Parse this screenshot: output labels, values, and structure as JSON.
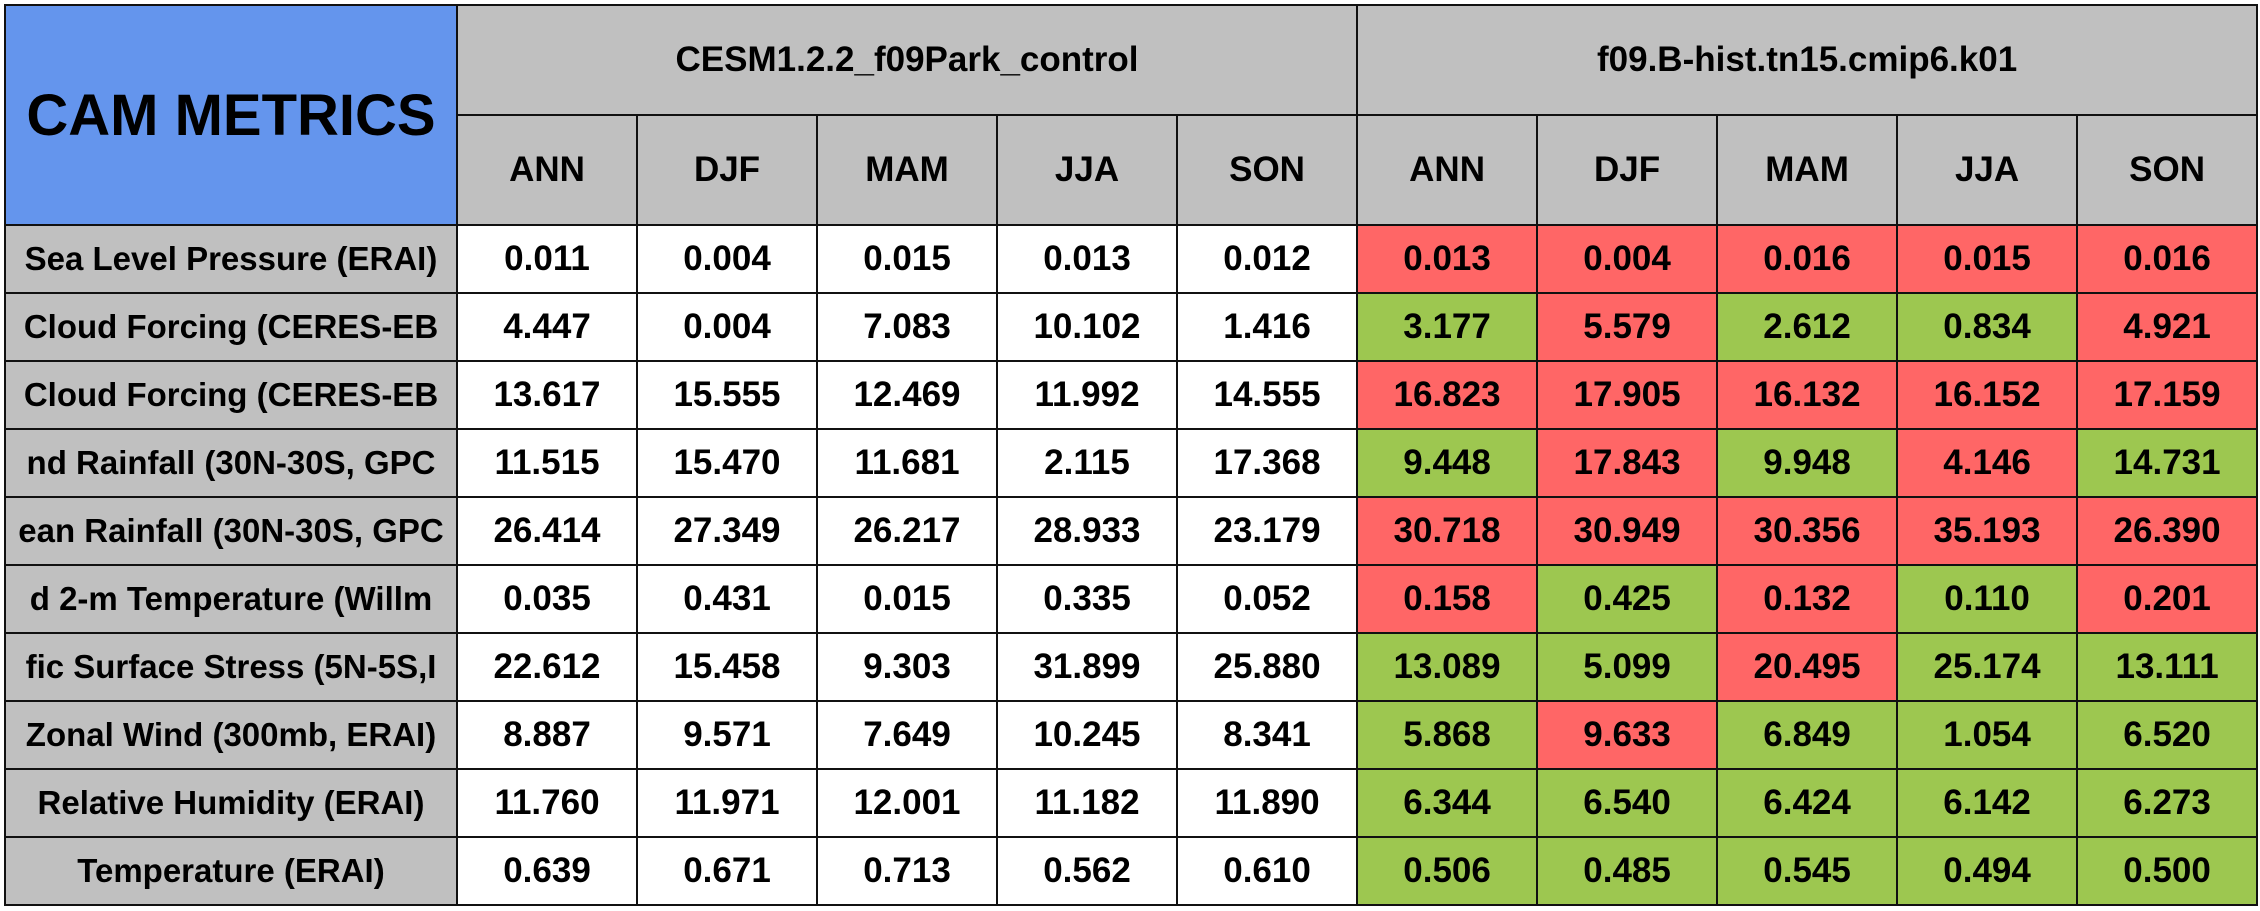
{
  "chart_data": {
    "type": "table",
    "title": "CAM METRICS",
    "cases": [
      "CESM1.2.2_f09Park_control",
      "f09.B-hist.tn15.cmip6.k01"
    ],
    "seasons": [
      "ANN",
      "DJF",
      "MAM",
      "JJA",
      "SON"
    ],
    "rows": [
      {
        "label": "Sea Level Pressure (ERAI)",
        "case1": [
          "0.011",
          "0.004",
          "0.015",
          "0.013",
          "0.012"
        ],
        "case2": [
          "0.013",
          "0.004",
          "0.016",
          "0.015",
          "0.016"
        ],
        "case2_status": [
          "worse",
          "worse",
          "worse",
          "worse",
          "worse"
        ]
      },
      {
        "label": "Cloud Forcing (CERES-EB",
        "case1": [
          "4.447",
          "0.004",
          "7.083",
          "10.102",
          "1.416"
        ],
        "case2": [
          "3.177",
          "5.579",
          "2.612",
          "0.834",
          "4.921"
        ],
        "case2_status": [
          "better",
          "worse",
          "better",
          "better",
          "worse"
        ]
      },
      {
        "label": "Cloud Forcing (CERES-EB",
        "case1": [
          "13.617",
          "15.555",
          "12.469",
          "11.992",
          "14.555"
        ],
        "case2": [
          "16.823",
          "17.905",
          "16.132",
          "16.152",
          "17.159"
        ],
        "case2_status": [
          "worse",
          "worse",
          "worse",
          "worse",
          "worse"
        ]
      },
      {
        "label": "nd Rainfall (30N-30S, GPC",
        "case1": [
          "11.515",
          "15.470",
          "11.681",
          "2.115",
          "17.368"
        ],
        "case2": [
          "9.448",
          "17.843",
          "9.948",
          "4.146",
          "14.731"
        ],
        "case2_status": [
          "better",
          "worse",
          "better",
          "worse",
          "better"
        ]
      },
      {
        "label": "ean Rainfall (30N-30S, GPC",
        "case1": [
          "26.414",
          "27.349",
          "26.217",
          "28.933",
          "23.179"
        ],
        "case2": [
          "30.718",
          "30.949",
          "30.356",
          "35.193",
          "26.390"
        ],
        "case2_status": [
          "worse",
          "worse",
          "worse",
          "worse",
          "worse"
        ]
      },
      {
        "label": "d 2-m Temperature (Willm",
        "case1": [
          "0.035",
          "0.431",
          "0.015",
          "0.335",
          "0.052"
        ],
        "case2": [
          "0.158",
          "0.425",
          "0.132",
          "0.110",
          "0.201"
        ],
        "case2_status": [
          "worse",
          "better",
          "worse",
          "better",
          "worse"
        ]
      },
      {
        "label": "fic Surface Stress (5N-5S,I",
        "case1": [
          "22.612",
          "15.458",
          "9.303",
          "31.899",
          "25.880"
        ],
        "case2": [
          "13.089",
          "5.099",
          "20.495",
          "25.174",
          "13.111"
        ],
        "case2_status": [
          "better",
          "better",
          "worse",
          "better",
          "better"
        ]
      },
      {
        "label": "Zonal Wind (300mb, ERAI)",
        "case1": [
          "8.887",
          "9.571",
          "7.649",
          "10.245",
          "8.341"
        ],
        "case2": [
          "5.868",
          "9.633",
          "6.849",
          "1.054",
          "6.520"
        ],
        "case2_status": [
          "better",
          "worse",
          "better",
          "better",
          "better"
        ]
      },
      {
        "label": "Relative Humidity (ERAI)",
        "case1": [
          "11.760",
          "11.971",
          "12.001",
          "11.182",
          "11.890"
        ],
        "case2": [
          "6.344",
          "6.540",
          "6.424",
          "6.142",
          "6.273"
        ],
        "case2_status": [
          "better",
          "better",
          "better",
          "better",
          "better"
        ]
      },
      {
        "label": "Temperature (ERAI)",
        "case1": [
          "0.639",
          "0.671",
          "0.713",
          "0.562",
          "0.610"
        ],
        "case2": [
          "0.506",
          "0.485",
          "0.545",
          "0.494",
          "0.500"
        ],
        "case2_status": [
          "better",
          "better",
          "better",
          "better",
          "better"
        ]
      }
    ],
    "colors": {
      "header_title_bg": "#6495ed",
      "header_bg": "#c0c0c0",
      "baseline_bg": "#ffffff",
      "worse_bg": "#ff6666",
      "better_bg": "#9dc750"
    }
  }
}
